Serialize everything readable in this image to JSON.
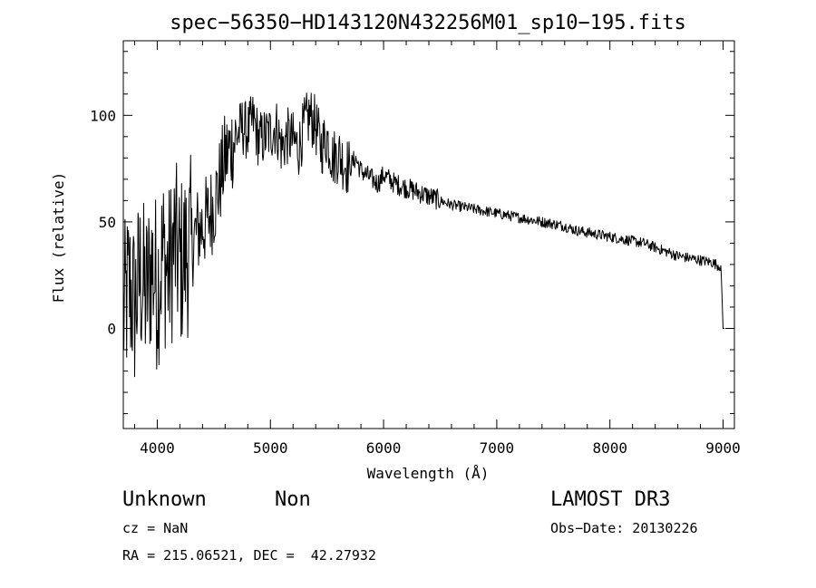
{
  "chart_data": {
    "type": "line",
    "title": "spec−56350−HD143120N432256M01_sp10−195.fits",
    "xlabel": "Wavelength (Å)",
    "ylabel": "Flux (relative)",
    "xlim": [
      3700,
      9100
    ],
    "ylim": [
      -47,
      135
    ],
    "xticks": [
      4000,
      5000,
      6000,
      7000,
      8000,
      9000
    ],
    "yticks": [
      0,
      50,
      100
    ],
    "grid": false,
    "series": [
      {
        "x": [
          3700,
          3750,
          3800,
          3850,
          3900,
          3950,
          4000,
          4050,
          4100,
          4150,
          4200,
          4250,
          4300,
          4350,
          4400,
          4450,
          4500,
          4550,
          4600,
          4650,
          4700,
          4750,
          4800,
          4850,
          4900,
          4950,
          5000,
          5050,
          5100,
          5150,
          5200,
          5250,
          5300,
          5350,
          5400,
          5450,
          5500,
          5550,
          5600,
          5650,
          5700,
          5750,
          5800,
          5850,
          5900,
          5950,
          6000,
          6100,
          6200,
          6300,
          6400,
          6500,
          6600,
          6700,
          6800,
          6900,
          7000,
          7100,
          7200,
          7300,
          7400,
          7500,
          7600,
          7700,
          7800,
          7900,
          8000,
          8100,
          8200,
          8300,
          8400,
          8500,
          8600,
          8700,
          8800,
          8900,
          8980,
          9000
        ],
        "y": [
          5,
          20,
          10,
          25,
          15,
          30,
          20,
          35,
          25,
          40,
          30,
          35,
          40,
          45,
          48,
          52,
          58,
          68,
          80,
          85,
          90,
          95,
          92,
          98,
          88,
          90,
          92,
          95,
          85,
          90,
          88,
          85,
          95,
          100,
          95,
          85,
          90,
          80,
          82,
          78,
          75,
          80,
          74,
          72,
          70,
          68,
          72,
          68,
          66,
          64,
          62,
          60,
          58,
          57,
          56,
          55,
          54,
          53,
          52,
          51,
          50,
          49,
          48,
          46,
          45,
          44,
          43,
          42,
          41,
          40,
          38,
          36,
          34,
          33,
          32,
          31,
          29,
          0
        ]
      }
    ]
  },
  "info": {
    "object_class": "Unknown",
    "object_subclass": "Non",
    "survey": "LAMOST DR3",
    "cz": "cz = NaN",
    "obs_date": "Obs−Date: 20130226",
    "coords": "RA = 215.06521, DEC =  42.27932"
  }
}
